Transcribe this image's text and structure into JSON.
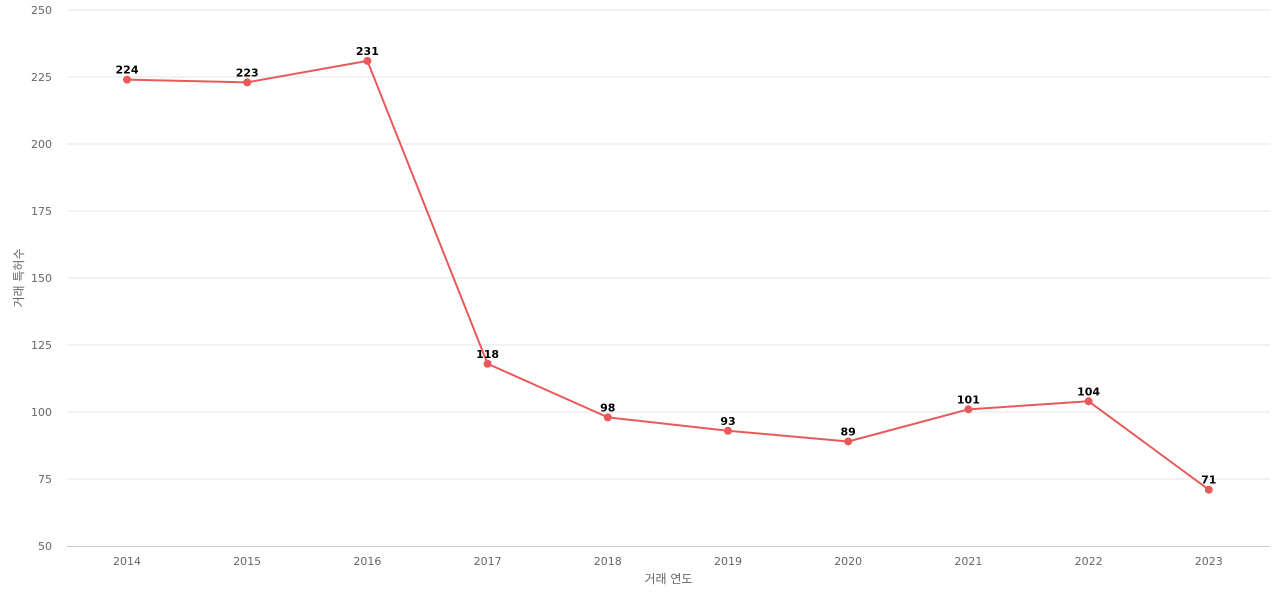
{
  "chart_data": {
    "type": "line",
    "title": "",
    "xlabel": "거래 연도",
    "ylabel": "거래 특허수",
    "x": [
      "2014",
      "2015",
      "2016",
      "2017",
      "2018",
      "2019",
      "2020",
      "2021",
      "2022",
      "2023"
    ],
    "series": [
      {
        "values": [
          224,
          223,
          231,
          118,
          98,
          93,
          89,
          101,
          104,
          71
        ],
        "color": "#e85a5a"
      }
    ],
    "ylim": [
      50,
      250
    ],
    "yticks": [
      50,
      75,
      100,
      125,
      150,
      175,
      200,
      225,
      250
    ],
    "grid": true,
    "data_labels": true,
    "legend": "none"
  }
}
